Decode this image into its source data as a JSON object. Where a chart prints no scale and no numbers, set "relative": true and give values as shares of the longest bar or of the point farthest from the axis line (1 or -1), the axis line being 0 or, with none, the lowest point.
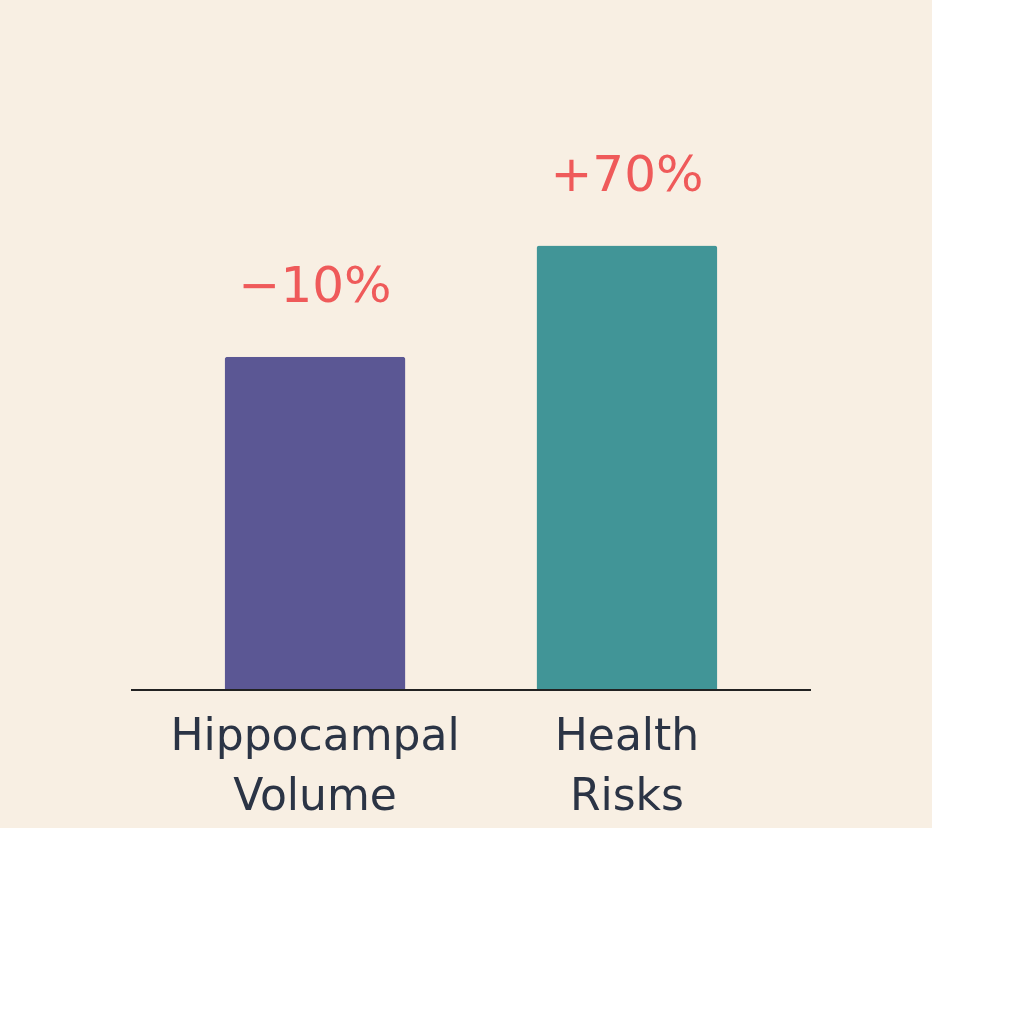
{
  "chart_data": {
    "type": "bar",
    "relative": true,
    "categories": [
      "Hippocampal Volume",
      "Health Risks"
    ],
    "values": [
      0.75,
      1
    ],
    "colors": [
      "#5b5794",
      "#419597"
    ],
    "annotations": [
      {
        "text": "−10%",
        "x": "Hippocampal Volume",
        "y": 0.75
      },
      {
        "text": "+70%",
        "x": "Health Risks",
        "y": 1
      }
    ]
  }
}
